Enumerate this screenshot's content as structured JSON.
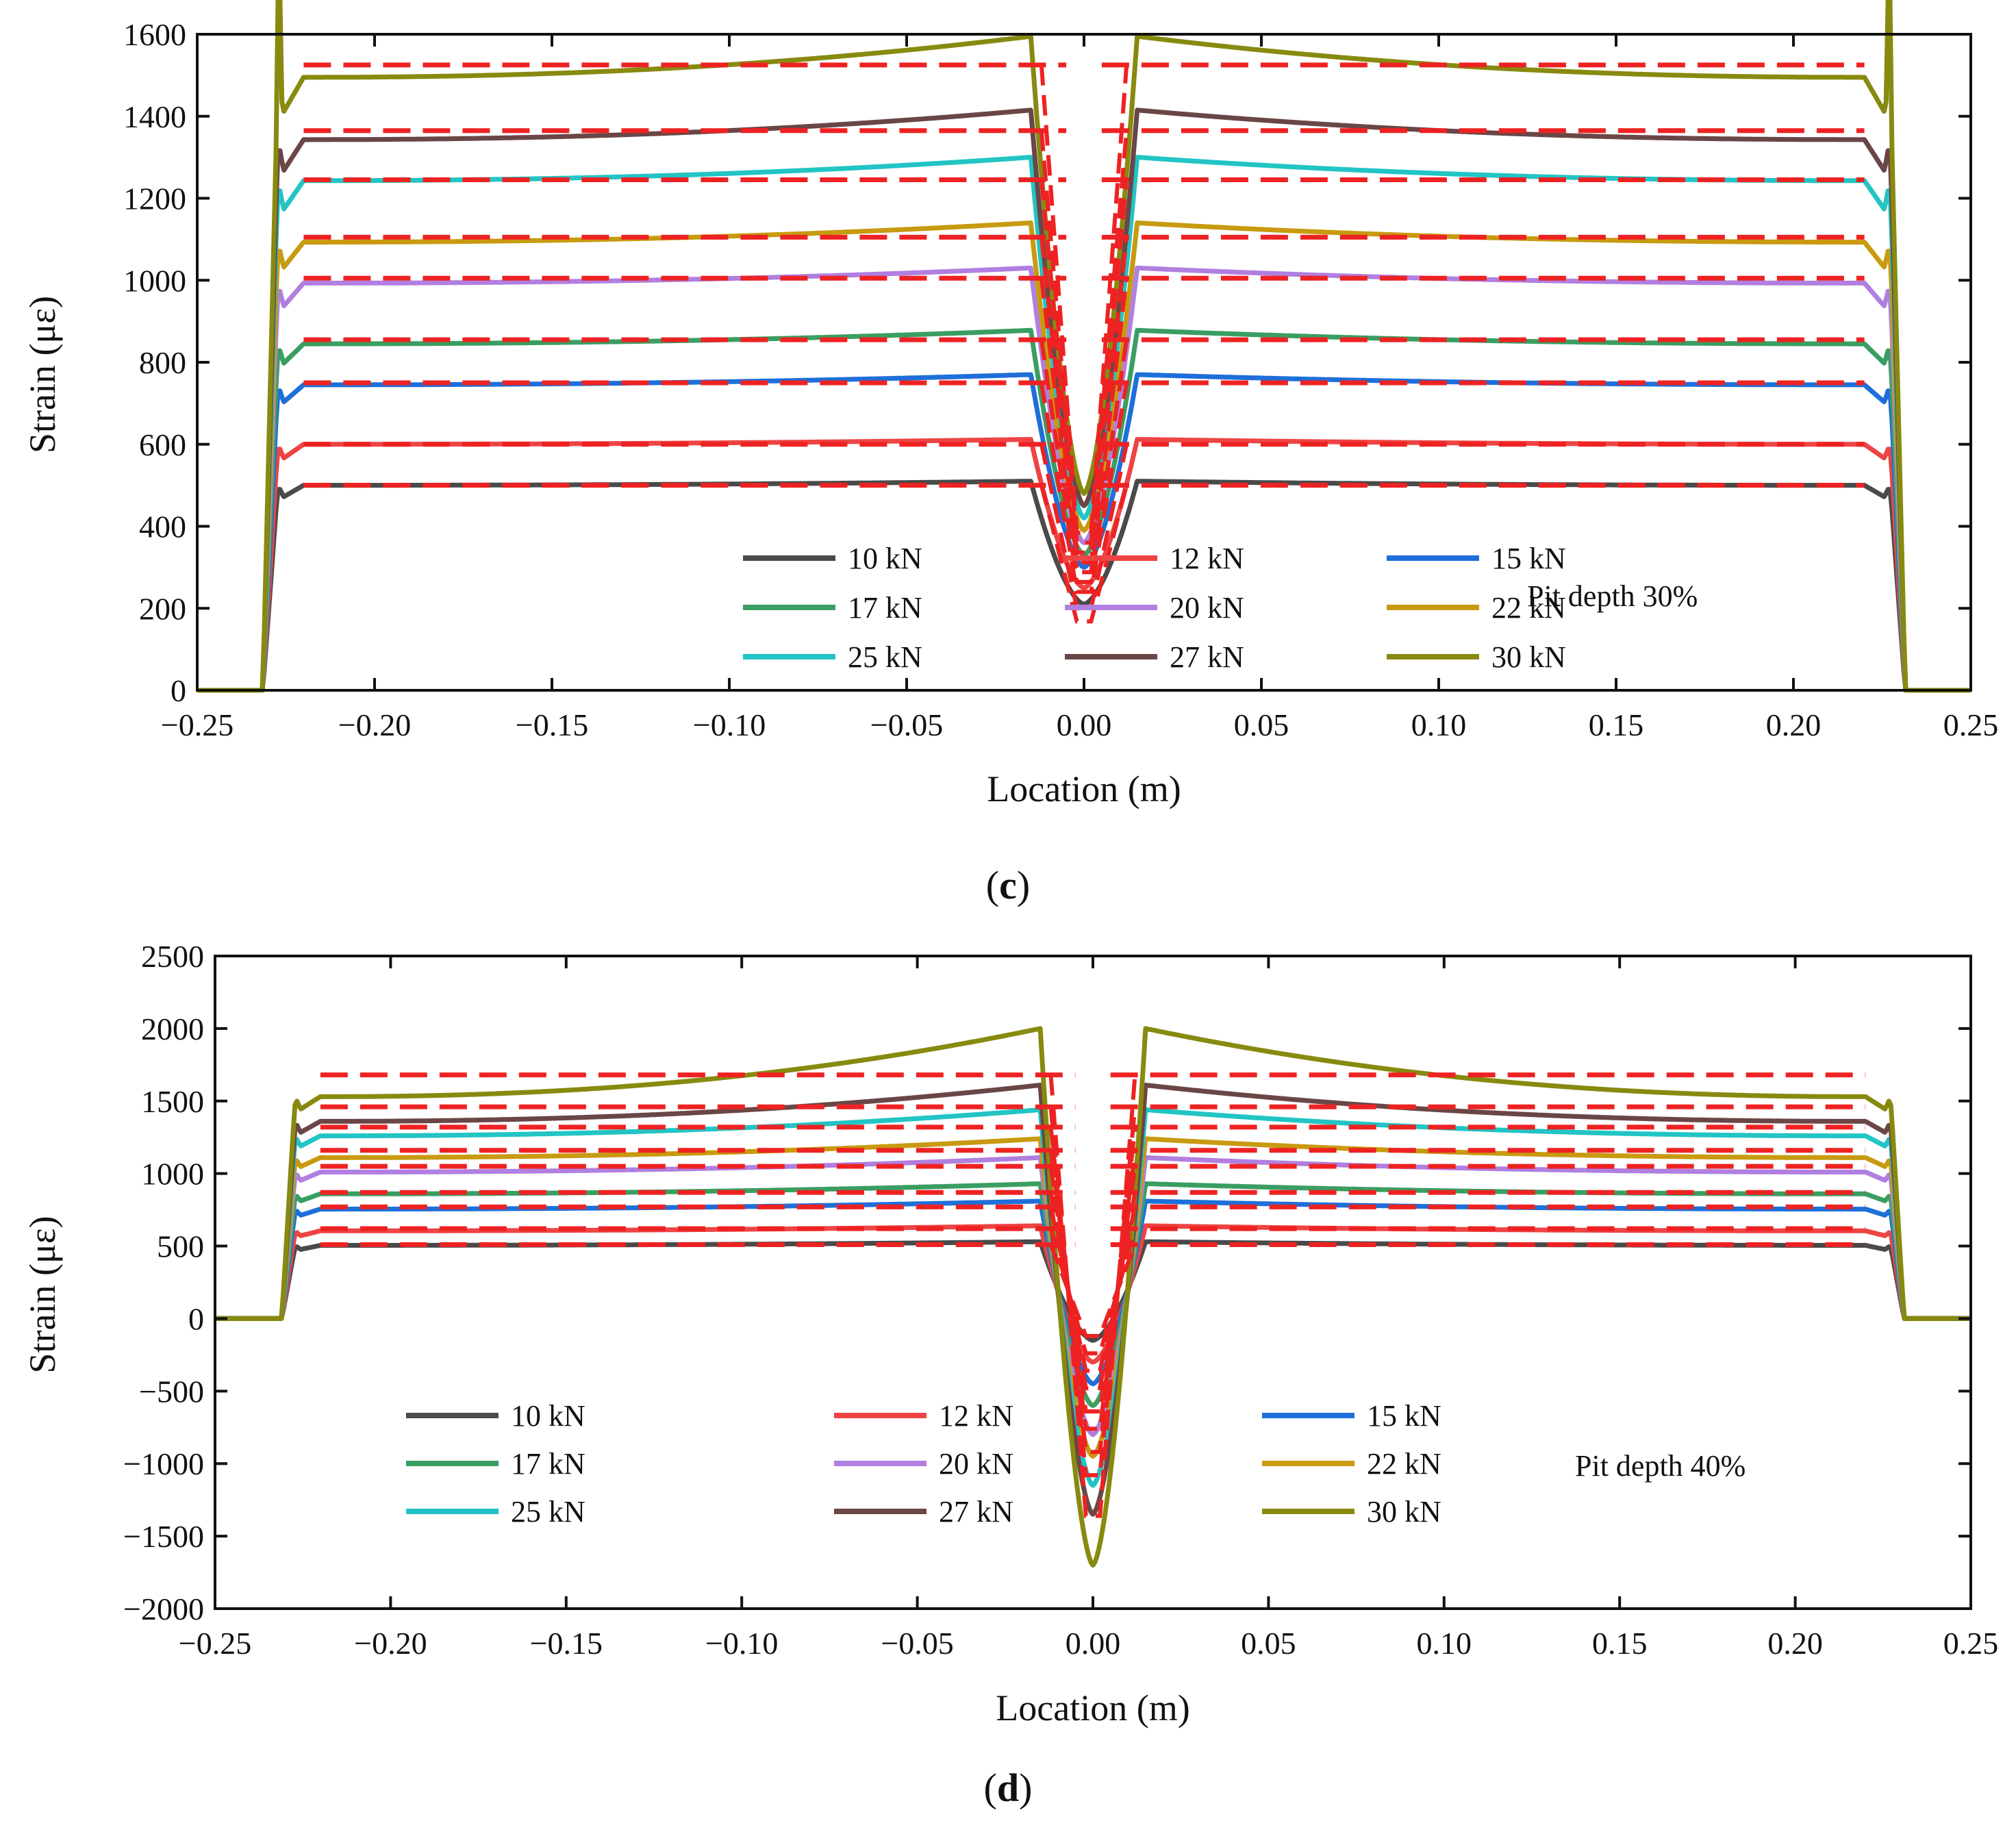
{
  "chart_data": [
    {
      "type": "line",
      "panel_label": "c",
      "annotation": "Pit depth 30%",
      "xlabel": "Location (m)",
      "ylabel": "Strain (με)",
      "xlim": [
        -0.25,
        0.25
      ],
      "ylim": [
        0,
        1600
      ],
      "xticks": [
        -0.25,
        -0.2,
        -0.15,
        -0.1,
        -0.05,
        0.0,
        0.05,
        0.1,
        0.15,
        0.2,
        0.25
      ],
      "xtick_labels": [
        "−0.25",
        "−0.20",
        "−0.15",
        "−0.10",
        "−0.05",
        "0.00",
        "0.05",
        "0.10",
        "0.15",
        "0.20",
        "0.25"
      ],
      "yticks": [
        0,
        200,
        400,
        600,
        800,
        1000,
        1200,
        1400,
        1600
      ],
      "ytick_labels": [
        "0",
        "200",
        "400",
        "600",
        "800",
        "1000",
        "1200",
        "1400",
        "1600"
      ],
      "grid": false,
      "legend_position": "bottom-center",
      "series": [
        {
          "name": "10 kN",
          "color": "#4a4a4a",
          "plateau": 500,
          "peak": 510,
          "dip": 210
        },
        {
          "name": "12 kN",
          "color": "#ee4444",
          "plateau": 600,
          "peak": 612,
          "dip": 250
        },
        {
          "name": "15 kN",
          "color": "#1e6fd9",
          "plateau": 745,
          "peak": 770,
          "dip": 300
        },
        {
          "name": "17 kN",
          "color": "#3a9e62",
          "plateau": 845,
          "peak": 878,
          "dip": 330
        },
        {
          "name": "20 kN",
          "color": "#b07fe0",
          "plateau": 993,
          "peak": 1030,
          "dip": 360
        },
        {
          "name": "22 kN",
          "color": "#c89a10",
          "plateau": 1093,
          "peak": 1140,
          "dip": 390
        },
        {
          "name": "25 kN",
          "color": "#22c4c4",
          "plateau": 1243,
          "peak": 1300,
          "dip": 420
        },
        {
          "name": "27 kN",
          "color": "#6b4646",
          "plateau": 1343,
          "peak": 1415,
          "dip": 450
        },
        {
          "name": "30 kN",
          "color": "#888a10",
          "plateau": 1495,
          "peak": 1595,
          "dip": 480
        }
      ],
      "reference_lines": {
        "name": "analytical",
        "color": "#ee2222",
        "values": [
          500,
          600,
          750,
          855,
          1005,
          1105,
          1245,
          1365,
          1525
        ],
        "x_range": [
          -0.22,
          0.22
        ]
      }
    },
    {
      "type": "line",
      "panel_label": "d",
      "annotation": "Pit depth 40%",
      "xlabel": "Location (m)",
      "ylabel": "Strain (με)",
      "xlim": [
        -0.25,
        0.25
      ],
      "ylim": [
        -2000,
        2500
      ],
      "xticks": [
        -0.25,
        -0.2,
        -0.15,
        -0.1,
        -0.05,
        0.0,
        0.05,
        0.1,
        0.15,
        0.2,
        0.25
      ],
      "xtick_labels": [
        "−0.25",
        "−0.20",
        "−0.15",
        "−0.10",
        "−0.05",
        "0.00",
        "0.05",
        "0.10",
        "0.15",
        "0.20",
        "0.25"
      ],
      "yticks": [
        -2000,
        -1500,
        -1000,
        -500,
        0,
        500,
        1000,
        1500,
        2000,
        2500
      ],
      "ytick_labels": [
        "−2000",
        "−1500",
        "−1000",
        "−500",
        "0",
        "500",
        "1000",
        "1500",
        "2000",
        "2500"
      ],
      "grid": false,
      "legend_position": "bottom-left",
      "series": [
        {
          "name": "10 kN",
          "color": "#4a4a4a",
          "plateau": 505,
          "peak": 530,
          "dip": -150
        },
        {
          "name": "12 kN",
          "color": "#ee4444",
          "plateau": 605,
          "peak": 640,
          "dip": -300
        },
        {
          "name": "15 kN",
          "color": "#1e6fd9",
          "plateau": 755,
          "peak": 810,
          "dip": -450
        },
        {
          "name": "17 kN",
          "color": "#3a9e62",
          "plateau": 860,
          "peak": 930,
          "dip": -600
        },
        {
          "name": "20 kN",
          "color": "#b07fe0",
          "plateau": 1010,
          "peak": 1110,
          "dip": -800
        },
        {
          "name": "22 kN",
          "color": "#c89a10",
          "plateau": 1110,
          "peak": 1240,
          "dip": -950
        },
        {
          "name": "25 kN",
          "color": "#22c4c4",
          "plateau": 1260,
          "peak": 1440,
          "dip": -1150
        },
        {
          "name": "27 kN",
          "color": "#6b4646",
          "plateau": 1360,
          "peak": 1610,
          "dip": -1350
        },
        {
          "name": "30 kN",
          "color": "#888a10",
          "plateau": 1530,
          "peak": 2000,
          "dip": -1700
        }
      ],
      "reference_lines": {
        "name": "analytical",
        "color": "#ee2222",
        "values": [
          510,
          620,
          770,
          870,
          1050,
          1160,
          1320,
          1460,
          1680
        ],
        "x_range": [
          -0.22,
          0.22
        ]
      }
    }
  ]
}
